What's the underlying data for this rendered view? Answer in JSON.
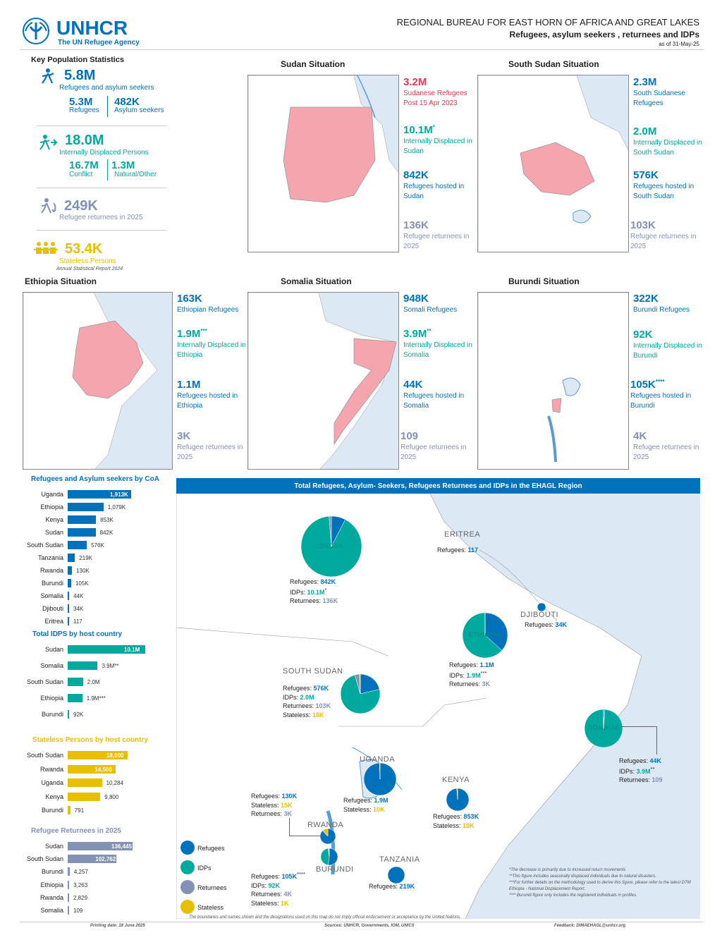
{
  "header": {
    "org": "UNHCR",
    "org_sub": "The UN Refugee Agency",
    "bureau": "REGIONAL BUREAU FOR EAST HORN OF AFRICA AND GREAT LAKES",
    "subtitle": "Refugees, asylum seekers , returnees and IDPs",
    "asof": "as of 31-May-25"
  },
  "key_stats": {
    "title": "Key Population Statistics",
    "refugees_total": "5.8M",
    "refugees_total_label": "Refugees and asylum seekers",
    "refugees": "5.3M",
    "refugees_label": "Refugees",
    "asylum": "482K",
    "asylum_label": "Asylum seekers",
    "idps_total": "18.0M",
    "idps_label": "Internally Displaced Persons",
    "conflict": "16.7M",
    "conflict_label": "Conflict",
    "natural": "1.3M",
    "natural_label": "Natural/Other",
    "returnees": "249K",
    "returnees_label": "Refugee returnees in 2025",
    "stateless": "53.4K",
    "stateless_label": "Stateless Persons",
    "stateless_note": "Annual Statistical Report 2024"
  },
  "situations": {
    "sudan": {
      "title": "Sudan Situation",
      "a": "3.2M",
      "a_label": "Sudanese Refugees Post 15 Apr 2023",
      "b": "10.1M",
      "b_sup": "*",
      "b_label": "Internally Displaced in Sudan",
      "c": "842K",
      "c_label": "Refugees hosted in Sudan",
      "d": "136K",
      "d_label": "Refugee returnees in 2025"
    },
    "south_sudan": {
      "title": "South Sudan Situation",
      "a": "2.3M",
      "a_label": "South Sudanese Refugees",
      "b": "2.0M",
      "b_label": "Internally Displaced in South Sudan",
      "c": "576K",
      "c_label": "Refugees hosted in South Sudan",
      "d": "103K",
      "d_label": "Refugee returnees in 2025"
    },
    "ethiopia": {
      "title": "Ethiopia Situation",
      "a": "163K",
      "a_label": "Ethiopian Refugees",
      "b": "1.9M",
      "b_sup": "***",
      "b_label": "Internally Displaced in Ethiopia",
      "c": "1.1M",
      "c_label": "Refugees hosted in Ethiopia",
      "d": "3K",
      "d_label": "Refugee returnees in 2025"
    },
    "somalia": {
      "title": "Somalia Situation",
      "a": "948K",
      "a_label": "Somali Refugees",
      "b": "3.9M",
      "b_sup": "**",
      "b_label": "Internally Displaced in Somalia",
      "c": "44K",
      "c_label": "Refugees hosted in Somalia",
      "d": "109",
      "d_label": "Refugee returnees in 2025"
    },
    "burundi": {
      "title": "Burundi Situation",
      "a": "322K",
      "a_label": "Burundi Refugees",
      "b": "92K",
      "b_label": "Internally Displaced in Burundi",
      "c": "105K",
      "c_sup": "****",
      "c_label": "Refugees hosted in Burundi",
      "d": "4K",
      "d_label": "Refugee returnees in 2025"
    }
  },
  "chart_data": [
    {
      "type": "bar",
      "title": "Refugees and Asylum seekers by CoA",
      "categories": [
        "Uganda",
        "Ethiopia",
        "Kenya",
        "Sudan",
        "South Sudan",
        "Tanzania",
        "Rwanda",
        "Burundi",
        "Somalia",
        "Djibouti",
        "Eritrea"
      ],
      "values": [
        1913000,
        1079000,
        853000,
        842000,
        576000,
        219000,
        130000,
        105000,
        44000,
        34000,
        117
      ],
      "labels": [
        "1,913K",
        "1,079K",
        "853K",
        "842K",
        "576K",
        "219K",
        "130K",
        "105K",
        "44K",
        "34K",
        "117"
      ],
      "color": "#0072bc"
    },
    {
      "type": "bar",
      "title": "Total IDPS by host country",
      "categories": [
        "Sudan",
        "Somalia",
        "South Sudan",
        "Ethiopia",
        "Burundi"
      ],
      "values": [
        10100000,
        3900000,
        2000000,
        1900000,
        92000
      ],
      "labels": [
        "10.1M",
        "3.9M**",
        "2.0M",
        "1.9M***",
        "92K"
      ],
      "color": "#00a99d"
    },
    {
      "type": "bar",
      "title": "Stateless Persons by host country",
      "categories": [
        "South Sudan",
        "Rwanda",
        "Uganda",
        "Kenya",
        "Burundi"
      ],
      "values": [
        18000,
        14500,
        10284,
        9800,
        791
      ],
      "labels": [
        "18,000",
        "14,500",
        "10,284",
        "9,800",
        "791"
      ],
      "color": "#e6c000"
    },
    {
      "type": "bar",
      "title": "Refugee Returnees in 2025",
      "categories": [
        "Sudan",
        "South Sudan",
        "Burundi",
        "Ethiopia",
        "Rwanda",
        "Somalia"
      ],
      "values": [
        136445,
        102762,
        4257,
        3263,
        2829,
        109
      ],
      "labels": [
        "136,445",
        "102,762",
        "4,257",
        "3,263",
        "2,829",
        "109"
      ],
      "color": "#8391b5"
    },
    {
      "type": "pie",
      "title": "Total Refugees, Asylum- Seekers, Refugees Returnees and IDPs in the EHAGL Region",
      "pies": [
        {
          "name": "SUDAN",
          "values": [
            842000,
            10100000,
            136000,
            0
          ]
        },
        {
          "name": "ETHIOPIA",
          "values": [
            1100000,
            1900000,
            3000,
            0
          ]
        },
        {
          "name": "SOUTH SUDAN",
          "values": [
            576000,
            2000000,
            103000,
            18000
          ]
        },
        {
          "name": "SOMALIA",
          "values": [
            44000,
            3900000,
            109,
            0
          ]
        },
        {
          "name": "UGANDA",
          "values": [
            1900000,
            0,
            0,
            10000
          ]
        },
        {
          "name": "KENYA",
          "values": [
            853000,
            0,
            0,
            10000
          ]
        },
        {
          "name": "RWANDA",
          "values": [
            130000,
            0,
            3000,
            15000
          ]
        },
        {
          "name": "BURUNDI",
          "values": [
            105000,
            92000,
            4000,
            1000
          ]
        },
        {
          "name": "TANZANIA",
          "values": [
            219000,
            0,
            0,
            0
          ]
        },
        {
          "name": "DJIBOUTI",
          "values": [
            34000,
            0,
            0,
            0
          ]
        }
      ],
      "series_colors": [
        "#0072bc",
        "#00a99d",
        "#8391b5",
        "#e6c000"
      ]
    }
  ],
  "legend": {
    "refugees": "Refugees",
    "idps": "IDPs",
    "returnees": "Returnees",
    "stateless": "Stateless"
  },
  "map_labels": {
    "sudan": {
      "r": "842K",
      "i": "10.1M",
      "i_sup": "*",
      "ret": "136K"
    },
    "eritrea": {
      "name": "ERITREA",
      "r": "117"
    },
    "djibouti": {
      "name": "DJIBOUTI",
      "r": "34K"
    },
    "ethiopia": {
      "r": "1.1M",
      "i": "1.9M",
      "i_sup": "***",
      "ret": "3K"
    },
    "south_sudan": {
      "name": "SOUTH SUDAN",
      "r": "576K",
      "i": "2.0M",
      "ret": "103K",
      "s": "18K"
    },
    "somalia": {
      "r": "44K",
      "i": "3.9M",
      "i_sup": "**",
      "ret": "109"
    },
    "uganda": {
      "name": "UGANDA",
      "r": "1.9M",
      "s": "10K"
    },
    "kenya": {
      "name": "KENYA",
      "r": "853K",
      "s": "10K"
    },
    "rwanda": {
      "name": "RWANDA",
      "r": "130K",
      "s": "15K",
      "ret": "3K"
    },
    "burundi": {
      "name": "BURUNDI",
      "r": "105K",
      "r_sup": "****",
      "i": "92K",
      "ret": "4K",
      "s": "1K"
    },
    "tanzania": {
      "name": "TANZANIA",
      "r": "219K"
    },
    "k_refugees": "Refugees:",
    "k_idps": "IDPs:",
    "k_returnees": "Returnees:",
    "k_stateless": "Stateless:"
  },
  "footnotes": {
    "n1": "*The decrease is primarily due to increased return movements",
    "n2": "**This figure includes seasonally displaced individuals due to natural disasters.",
    "n3": "***For further details on the methodology used to derive this figure, please refer to the latest DTM Ethiopia - National Displacement Report.",
    "n4": "**** Burundi figure only includes the registered individuals in profiles.",
    "disclaimer": "The boundaries and names shown and the designations used on this map do not imply official endorsement or acceptance by the United Nations.",
    "printing": "Printing date: 18 June 2025",
    "sources": "Sources: UNHCR, Governments, IOM, UNICS",
    "feedback": "Feedback: DIMAEHAGL@unhcr.org"
  }
}
